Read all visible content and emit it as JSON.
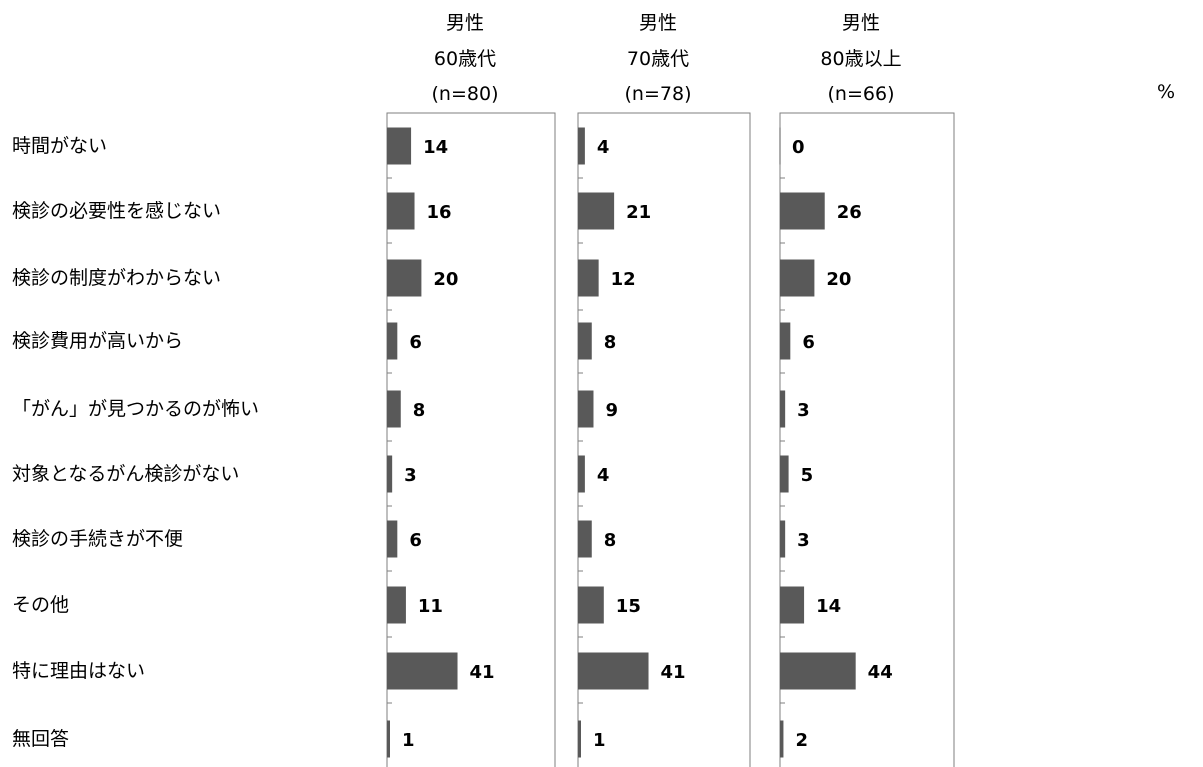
{
  "chart_data": {
    "type": "bar",
    "orientation": "horizontal",
    "unit": "%",
    "categories": [
      "時間がない",
      "検診の必要性を感じない",
      "検診の制度がわからない",
      "検診費用が高いから",
      "「がん」が見つかるのが怖い",
      "対象となるがん検診がない",
      "検診の手続きが不便",
      "その他",
      "特に理由はない",
      "無回答"
    ],
    "series": [
      {
        "name": "男性 60歳代 (n=80)",
        "header": [
          "男性",
          "60歳代",
          "(n=80)"
        ],
        "values": [
          14,
          16,
          20,
          6,
          8,
          3,
          6,
          11,
          41,
          1
        ]
      },
      {
        "name": "男性 70歳代 (n=78)",
        "header": [
          "男性",
          "70歳代",
          "(n=78)"
        ],
        "values": [
          4,
          21,
          12,
          8,
          9,
          4,
          8,
          15,
          41,
          1
        ]
      },
      {
        "name": "男性 80歳以上 (n=66)",
        "header": [
          "男性",
          "80歳以上",
          "(n=66)"
        ],
        "values": [
          0,
          26,
          20,
          6,
          3,
          5,
          3,
          14,
          44,
          2
        ]
      }
    ],
    "bar_color": "#595959",
    "grid": false,
    "legend": "none"
  }
}
